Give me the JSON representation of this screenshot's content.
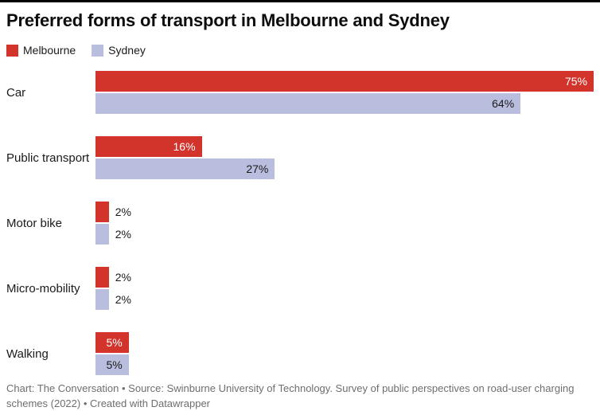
{
  "title": "Preferred forms of transport in Melbourne and Sydney",
  "chart_data": {
    "type": "bar",
    "orientation": "horizontal",
    "title": "Preferred forms of transport in Melbourne and Sydney",
    "categories": [
      "Car",
      "Public transport",
      "Motor bike",
      "Micro-mobility",
      "Walking"
    ],
    "series": [
      {
        "name": "Melbourne",
        "color": "#d2342c",
        "label_color": "#ffffff",
        "values": [
          75,
          16,
          2,
          2,
          5
        ]
      },
      {
        "name": "Sydney",
        "color": "#b9bede",
        "label_color": "#1a1a1a",
        "values": [
          64,
          27,
          2,
          2,
          5
        ]
      }
    ],
    "value_suffix": "%",
    "xlim": [
      0,
      75
    ],
    "grid": false,
    "legend_position": "top",
    "inside_label_threshold": 5
  },
  "footer": {
    "text": "Chart: The Conversation • Source: Swinburne University of Technology. Survey of public perspectives on road-user charging schemes (2022) • Created with Datawrapper"
  }
}
